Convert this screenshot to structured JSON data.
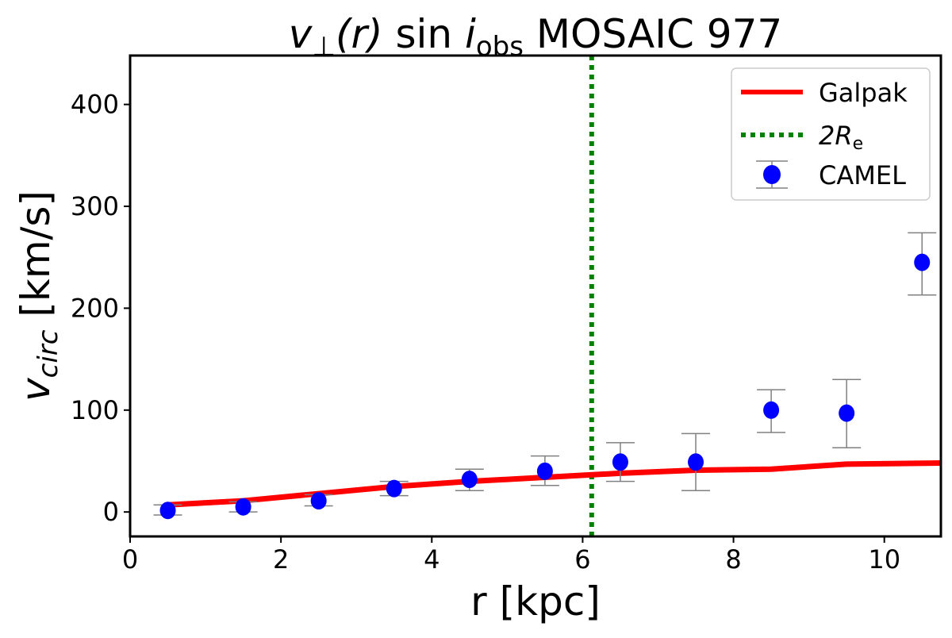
{
  "chart_data": {
    "type": "scatter",
    "title": {
      "v": "v",
      "perp": "⊥",
      "r": "(r)",
      "sin": " sin ",
      "i": "i",
      "obs": "obs",
      "rest": " MOSAIC 977"
    },
    "xlabel": "r [kpc]",
    "ylabel": {
      "v": "v",
      "sub": "circ",
      "unit": " [km/s]"
    },
    "xlim": [
      0,
      10.75
    ],
    "ylim": [
      -24,
      448
    ],
    "xticks": [
      0,
      2,
      4,
      6,
      8,
      10
    ],
    "yticks": [
      0,
      100,
      200,
      300,
      400
    ],
    "grid": false,
    "legend_placement": "top-right",
    "legend": [
      {
        "label": "Galpak",
        "style": "solid-line",
        "color": "#ff0000"
      },
      {
        "label_main": "2R",
        "label_sub": "e",
        "style": "dotted-line",
        "color": "#008000"
      },
      {
        "label": "CAMEL",
        "style": "marker-errorbar",
        "color": "#0000ff"
      }
    ],
    "series": [
      {
        "name": "Galpak",
        "kind": "line",
        "color": "#ff0000",
        "x": [
          0.5,
          1.5,
          2.5,
          3.5,
          4.5,
          5.5,
          6.5,
          7.5,
          8.5,
          9.5,
          10.75
        ],
        "y": [
          7,
          11,
          18,
          25,
          30,
          34,
          38,
          41,
          42,
          47,
          48
        ]
      },
      {
        "name": "CAMEL",
        "kind": "errorbar",
        "color": "#0000ff",
        "errorbar_color": "#808080",
        "x": [
          0.5,
          1.5,
          2.5,
          3.5,
          4.5,
          5.5,
          6.5,
          7.5,
          8.5,
          9.5,
          10.5
        ],
        "y": [
          1.5,
          5,
          11,
          23,
          32,
          40,
          49,
          49,
          100,
          97,
          245
        ],
        "ylow": [
          -3,
          0,
          6,
          16,
          21,
          26,
          30,
          21,
          78,
          63,
          213
        ],
        "yhigh": [
          7,
          10,
          17,
          30,
          42,
          55,
          68,
          77,
          120,
          130,
          274
        ]
      },
      {
        "name": "2Re",
        "kind": "vline",
        "color": "#008000",
        "x": 6.12
      }
    ]
  }
}
